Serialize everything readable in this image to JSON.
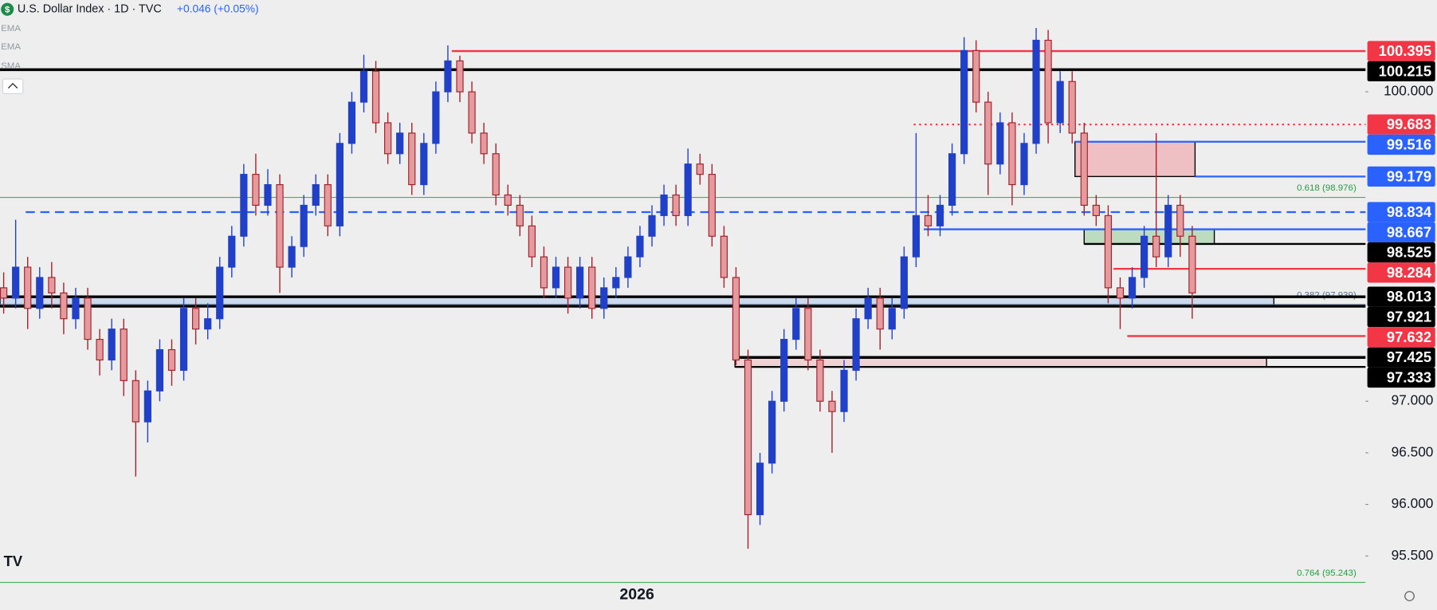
{
  "chart_data": {
    "type": "candlestick",
    "title": "U.S. Dollar Index · 1D · TVC",
    "change": "+0.046 (+0.05%)",
    "indicators": [
      "EMA",
      "EMA",
      "SMA"
    ],
    "x_label": "2026",
    "up_color": "#2140c8",
    "down_fill": "#e59a9e",
    "down_stroke": "#a2202a",
    "ylim": [
      95.244,
      100.889
    ],
    "yticks": [
      {
        "value": 95.5,
        "label": "95.500"
      },
      {
        "value": 96,
        "label": "96.000"
      },
      {
        "value": 96.5,
        "label": "96.500"
      },
      {
        "value": 97,
        "label": "97.000"
      },
      {
        "value": 100,
        "label": "100.000"
      }
    ],
    "levels": [
      {
        "value": 100.395,
        "color": "#f23645",
        "style": "solid"
      },
      {
        "value": 100.215,
        "color": "#000000",
        "style": "thick"
      },
      {
        "value": 99.683,
        "color": "#f23645",
        "style": "dotted"
      },
      {
        "value": 99.516,
        "color": "#2962ff",
        "style": "solid"
      },
      {
        "value": 99.179,
        "color": "#2962ff",
        "style": "solid"
      },
      {
        "value": 98.834,
        "color": "#2962ff",
        "style": "dashed"
      },
      {
        "value": 98.667,
        "color": "#2962ff",
        "style": "solid"
      },
      {
        "value": 98.525,
        "color": "#000000",
        "style": "solid"
      },
      {
        "value": 98.284,
        "color": "#f23645",
        "style": "solid"
      },
      {
        "value": 98.013,
        "color": "#000000",
        "style": "thick"
      },
      {
        "value": 97.921,
        "color": "#000000",
        "style": "thick"
      },
      {
        "value": 97.632,
        "color": "#f23645",
        "style": "solid"
      },
      {
        "value": 97.425,
        "color": "#000000",
        "style": "thick"
      },
      {
        "value": 97.333,
        "color": "#000000",
        "style": "solid"
      }
    ],
    "fibs": [
      {
        "label": "0.618 (98.976)",
        "value": 98.976,
        "color": "#22a03a"
      },
      {
        "label": "0.382 (97.939)",
        "value": 97.939,
        "color": "#5a7090"
      },
      {
        "label": "0.764 (95.243)",
        "value": 95.243,
        "color": "#22a03a"
      }
    ],
    "ohlc": [
      [
        98.1,
        98.25,
        97.85,
        98.0
      ],
      [
        98.0,
        98.76,
        97.9,
        98.3
      ],
      [
        98.3,
        98.4,
        97.7,
        97.9
      ],
      [
        97.9,
        98.3,
        97.8,
        98.2
      ],
      [
        98.2,
        98.35,
        97.9,
        98.05
      ],
      [
        98.05,
        98.15,
        97.65,
        97.8
      ],
      [
        97.8,
        98.1,
        97.7,
        98.0
      ],
      [
        98.0,
        98.1,
        97.5,
        97.6
      ],
      [
        97.6,
        97.7,
        97.25,
        97.4
      ],
      [
        97.4,
        97.8,
        97.3,
        97.7
      ],
      [
        97.7,
        97.8,
        97.05,
        97.2
      ],
      [
        97.2,
        97.3,
        96.27,
        96.8
      ],
      [
        96.8,
        97.2,
        96.6,
        97.1
      ],
      [
        97.1,
        97.6,
        97.0,
        97.5
      ],
      [
        97.5,
        97.6,
        97.15,
        97.3
      ],
      [
        97.3,
        98.0,
        97.2,
        97.9
      ],
      [
        97.9,
        98.0,
        97.55,
        97.7
      ],
      [
        97.7,
        97.95,
        97.6,
        97.8
      ],
      [
        97.8,
        98.4,
        97.7,
        98.3
      ],
      [
        98.3,
        98.7,
        98.2,
        98.6
      ],
      [
        98.6,
        99.3,
        98.5,
        99.2
      ],
      [
        99.2,
        99.4,
        98.8,
        98.9
      ],
      [
        98.9,
        99.25,
        98.8,
        99.1
      ],
      [
        99.1,
        99.2,
        98.05,
        98.3
      ],
      [
        98.3,
        98.6,
        98.2,
        98.5
      ],
      [
        98.5,
        99.0,
        98.4,
        98.9
      ],
      [
        98.9,
        99.2,
        98.8,
        99.1
      ],
      [
        99.1,
        99.2,
        98.6,
        98.7
      ],
      [
        98.7,
        99.6,
        98.6,
        99.5
      ],
      [
        99.5,
        100.0,
        99.4,
        99.9
      ],
      [
        99.9,
        100.36,
        99.8,
        100.2
      ],
      [
        100.2,
        100.3,
        99.6,
        99.7
      ],
      [
        99.7,
        99.8,
        99.3,
        99.4
      ],
      [
        99.4,
        99.7,
        99.3,
        99.6
      ],
      [
        99.6,
        99.7,
        99.0,
        99.1
      ],
      [
        99.1,
        99.6,
        99.0,
        99.5
      ],
      [
        99.5,
        100.1,
        99.4,
        100.0
      ],
      [
        100.0,
        100.45,
        99.9,
        100.3
      ],
      [
        100.3,
        100.35,
        99.9,
        100.0
      ],
      [
        100.0,
        100.1,
        99.5,
        99.6
      ],
      [
        99.6,
        99.7,
        99.3,
        99.4
      ],
      [
        99.4,
        99.5,
        98.9,
        99.0
      ],
      [
        99.0,
        99.1,
        98.8,
        98.9
      ],
      [
        98.9,
        99.0,
        98.6,
        98.7
      ],
      [
        98.7,
        98.8,
        98.3,
        98.4
      ],
      [
        98.4,
        98.5,
        98.0,
        98.1
      ],
      [
        98.1,
        98.4,
        98.0,
        98.3
      ],
      [
        98.3,
        98.4,
        97.85,
        98.0
      ],
      [
        98.0,
        98.4,
        97.9,
        98.3
      ],
      [
        98.3,
        98.4,
        97.8,
        97.9
      ],
      [
        97.9,
        98.2,
        97.8,
        98.1
      ],
      [
        98.1,
        98.3,
        98.0,
        98.2
      ],
      [
        98.2,
        98.5,
        98.1,
        98.4
      ],
      [
        98.4,
        98.7,
        98.3,
        98.6
      ],
      [
        98.6,
        98.9,
        98.5,
        98.8
      ],
      [
        98.8,
        99.1,
        98.7,
        99.0
      ],
      [
        99.0,
        99.1,
        98.7,
        98.8
      ],
      [
        98.8,
        99.45,
        98.7,
        99.3
      ],
      [
        99.3,
        99.4,
        99.1,
        99.2
      ],
      [
        99.2,
        99.3,
        98.5,
        98.6
      ],
      [
        98.6,
        98.7,
        98.1,
        98.2
      ],
      [
        98.2,
        98.3,
        97.35,
        97.4
      ],
      [
        97.4,
        97.5,
        95.57,
        95.9
      ],
      [
        95.9,
        96.5,
        95.8,
        96.4
      ],
      [
        96.4,
        97.1,
        96.3,
        97.0
      ],
      [
        97.0,
        97.7,
        96.9,
        97.6
      ],
      [
        97.6,
        98.0,
        97.5,
        97.9
      ],
      [
        97.9,
        98.0,
        97.3,
        97.4
      ],
      [
        97.4,
        97.5,
        96.9,
        97.0
      ],
      [
        97.0,
        97.1,
        96.5,
        96.9
      ],
      [
        96.9,
        97.4,
        96.8,
        97.3
      ],
      [
        97.3,
        97.9,
        97.2,
        97.8
      ],
      [
        97.8,
        98.1,
        97.7,
        98.0
      ],
      [
        98.0,
        98.1,
        97.5,
        97.7
      ],
      [
        97.7,
        98.0,
        97.6,
        97.9
      ],
      [
        97.9,
        98.5,
        97.8,
        98.4
      ],
      [
        98.4,
        99.6,
        98.3,
        98.8
      ],
      [
        98.8,
        99.0,
        98.6,
        98.7
      ],
      [
        98.7,
        99.0,
        98.6,
        98.9
      ],
      [
        98.9,
        99.5,
        98.8,
        99.4
      ],
      [
        99.4,
        100.53,
        99.3,
        100.4
      ],
      [
        100.4,
        100.5,
        99.8,
        99.9
      ],
      [
        99.9,
        100.0,
        99.0,
        99.3
      ],
      [
        99.3,
        99.8,
        99.2,
        99.7
      ],
      [
        99.7,
        99.8,
        98.9,
        99.1
      ],
      [
        99.1,
        99.6,
        99.0,
        99.5
      ],
      [
        99.5,
        100.62,
        99.4,
        100.5
      ],
      [
        100.5,
        100.6,
        99.5,
        99.7
      ],
      [
        99.7,
        100.2,
        99.6,
        100.1
      ],
      [
        100.1,
        100.2,
        99.5,
        99.6
      ],
      [
        99.6,
        99.7,
        98.8,
        98.9
      ],
      [
        98.9,
        99.0,
        98.7,
        98.8
      ],
      [
        98.8,
        98.9,
        97.95,
        98.1
      ],
      [
        98.1,
        98.2,
        97.7,
        98.0
      ],
      [
        98.0,
        98.3,
        97.9,
        98.2
      ],
      [
        98.2,
        98.7,
        98.1,
        98.6
      ],
      [
        98.6,
        99.6,
        98.3,
        98.4
      ],
      [
        98.4,
        99.0,
        98.3,
        98.9
      ],
      [
        98.9,
        99.0,
        98.4,
        98.6
      ],
      [
        98.6,
        98.7,
        97.8,
        98.05
      ]
    ]
  }
}
